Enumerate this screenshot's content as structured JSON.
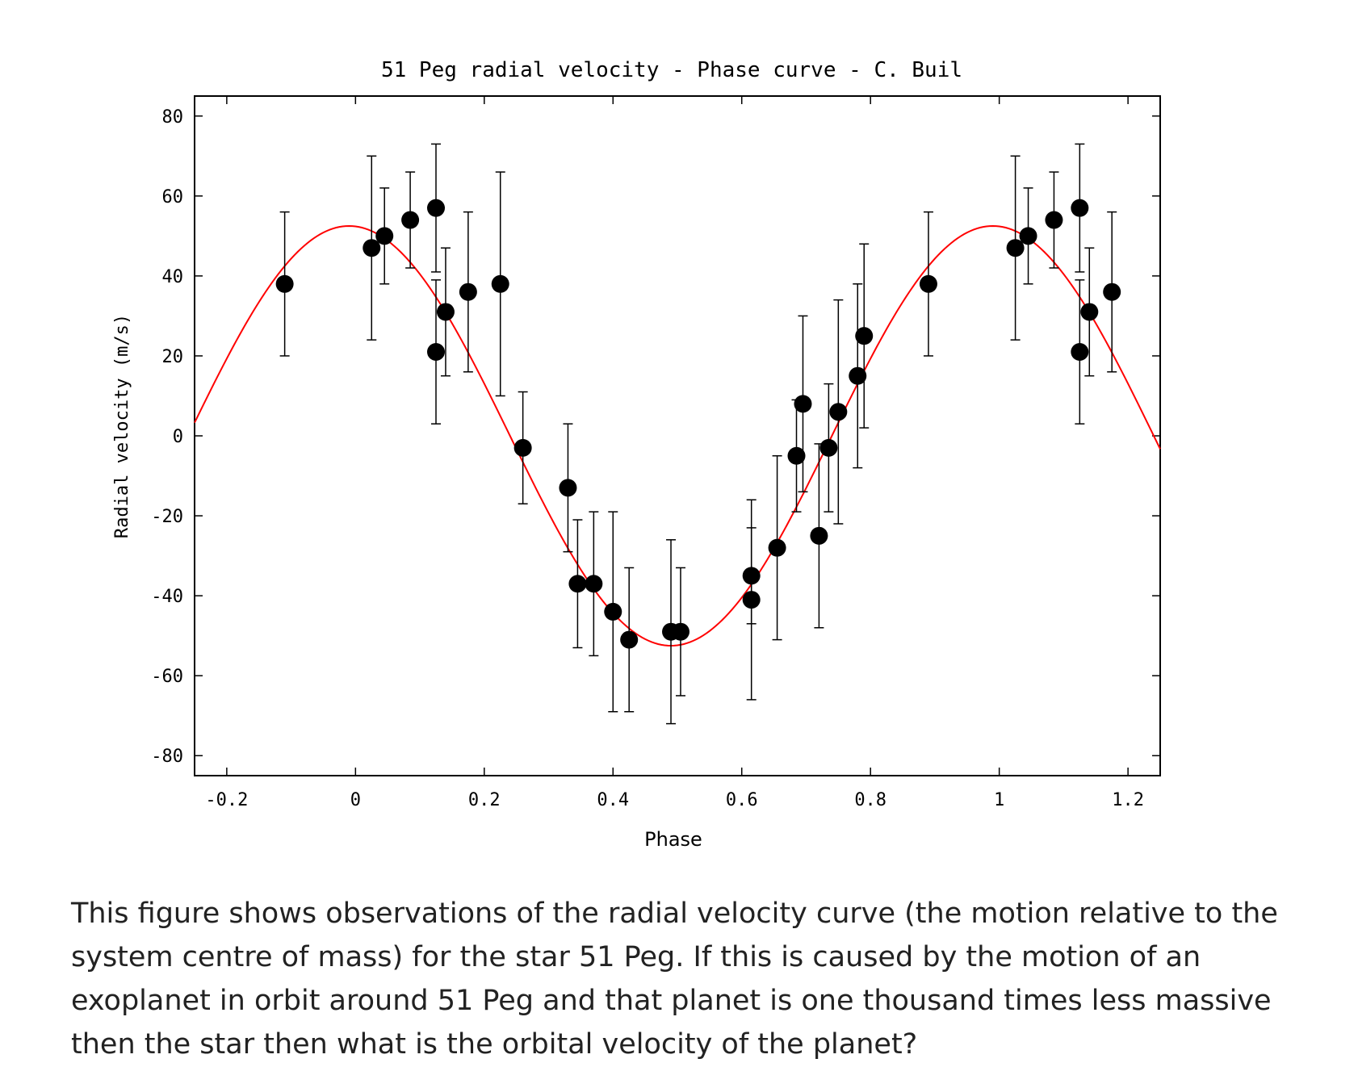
{
  "chart_data": {
    "type": "scatter",
    "title": "51 Peg radial velocity - Phase curve - C. Buil",
    "xlabel": "Phase",
    "ylabel": "Radial velocity (m/s)",
    "xlim": [
      -0.25,
      1.25
    ],
    "ylim": [
      -85,
      85
    ],
    "xticks": [
      -0.2,
      0,
      0.2,
      0.4,
      0.6,
      0.8,
      1,
      1.2
    ],
    "xtick_labels": [
      "-0.2",
      "0",
      "0.2",
      "0.4",
      "0.6",
      "0.8",
      "1",
      "1.2"
    ],
    "yticks": [
      80,
      60,
      40,
      20,
      0,
      -20,
      -40,
      -60,
      -80
    ],
    "ytick_labels": [
      "80",
      "60",
      "40",
      "20",
      "0",
      "-20",
      "-40",
      "-60",
      "-80"
    ],
    "grid": false,
    "series": [
      {
        "kind": "points_with_error_bars",
        "color": "#000000",
        "points": [
          {
            "x": -0.11,
            "y": 38,
            "err": 18
          },
          {
            "x": 0.025,
            "y": 47,
            "err": 23
          },
          {
            "x": 0.045,
            "y": 50,
            "err": 12
          },
          {
            "x": 0.085,
            "y": 54,
            "err": 12
          },
          {
            "x": 0.125,
            "y": 57,
            "err": 16
          },
          {
            "x": 0.125,
            "y": 21,
            "err": 18
          },
          {
            "x": 0.14,
            "y": 31,
            "err": 16
          },
          {
            "x": 0.175,
            "y": 36,
            "err": 20
          },
          {
            "x": 0.225,
            "y": 38,
            "err": 28
          },
          {
            "x": 0.26,
            "y": -3,
            "err": 14
          },
          {
            "x": 0.33,
            "y": -13,
            "err": 16
          },
          {
            "x": 0.345,
            "y": -37,
            "err": 16
          },
          {
            "x": 0.37,
            "y": -37,
            "err": 18
          },
          {
            "x": 0.4,
            "y": -44,
            "err": 25
          },
          {
            "x": 0.425,
            "y": -51,
            "err": 18
          },
          {
            "x": 0.49,
            "y": -49,
            "err": 23
          },
          {
            "x": 0.505,
            "y": -49,
            "err": 16
          },
          {
            "x": 0.615,
            "y": -35,
            "err": 12
          },
          {
            "x": 0.615,
            "y": -41,
            "err": 25
          },
          {
            "x": 0.655,
            "y": -28,
            "err": 23
          },
          {
            "x": 0.685,
            "y": -5,
            "err": 14
          },
          {
            "x": 0.695,
            "y": 8,
            "err": 22
          },
          {
            "x": 0.72,
            "y": -25,
            "err": 23
          },
          {
            "x": 0.735,
            "y": -3,
            "err": 16
          },
          {
            "x": 0.75,
            "y": 6,
            "err": 28
          },
          {
            "x": 0.78,
            "y": 15,
            "err": 23
          },
          {
            "x": 0.79,
            "y": 25,
            "err": 23
          },
          {
            "x": 0.89,
            "y": 38,
            "err": 18
          },
          {
            "x": 1.025,
            "y": 47,
            "err": 23
          },
          {
            "x": 1.045,
            "y": 50,
            "err": 12
          },
          {
            "x": 1.085,
            "y": 54,
            "err": 12
          },
          {
            "x": 1.125,
            "y": 57,
            "err": 16
          },
          {
            "x": 1.125,
            "y": 21,
            "err": 18
          },
          {
            "x": 1.14,
            "y": 31,
            "err": 16
          },
          {
            "x": 1.175,
            "y": 36,
            "err": 20
          }
        ]
      },
      {
        "kind": "sine_fit",
        "color": "#ff0000",
        "amplitude": 52.5,
        "period": 1,
        "offset": 0,
        "peak_phase": -0.01
      }
    ]
  },
  "caption": "This figure shows observations of the radial velocity curve (the motion relative to the system centre of mass) for the star 51 Peg.  If this is caused by the motion of an exoplanet in orbit around 51 Peg and that planet is one thousand times less massive then the star then what is the orbital velocity of the planet?"
}
